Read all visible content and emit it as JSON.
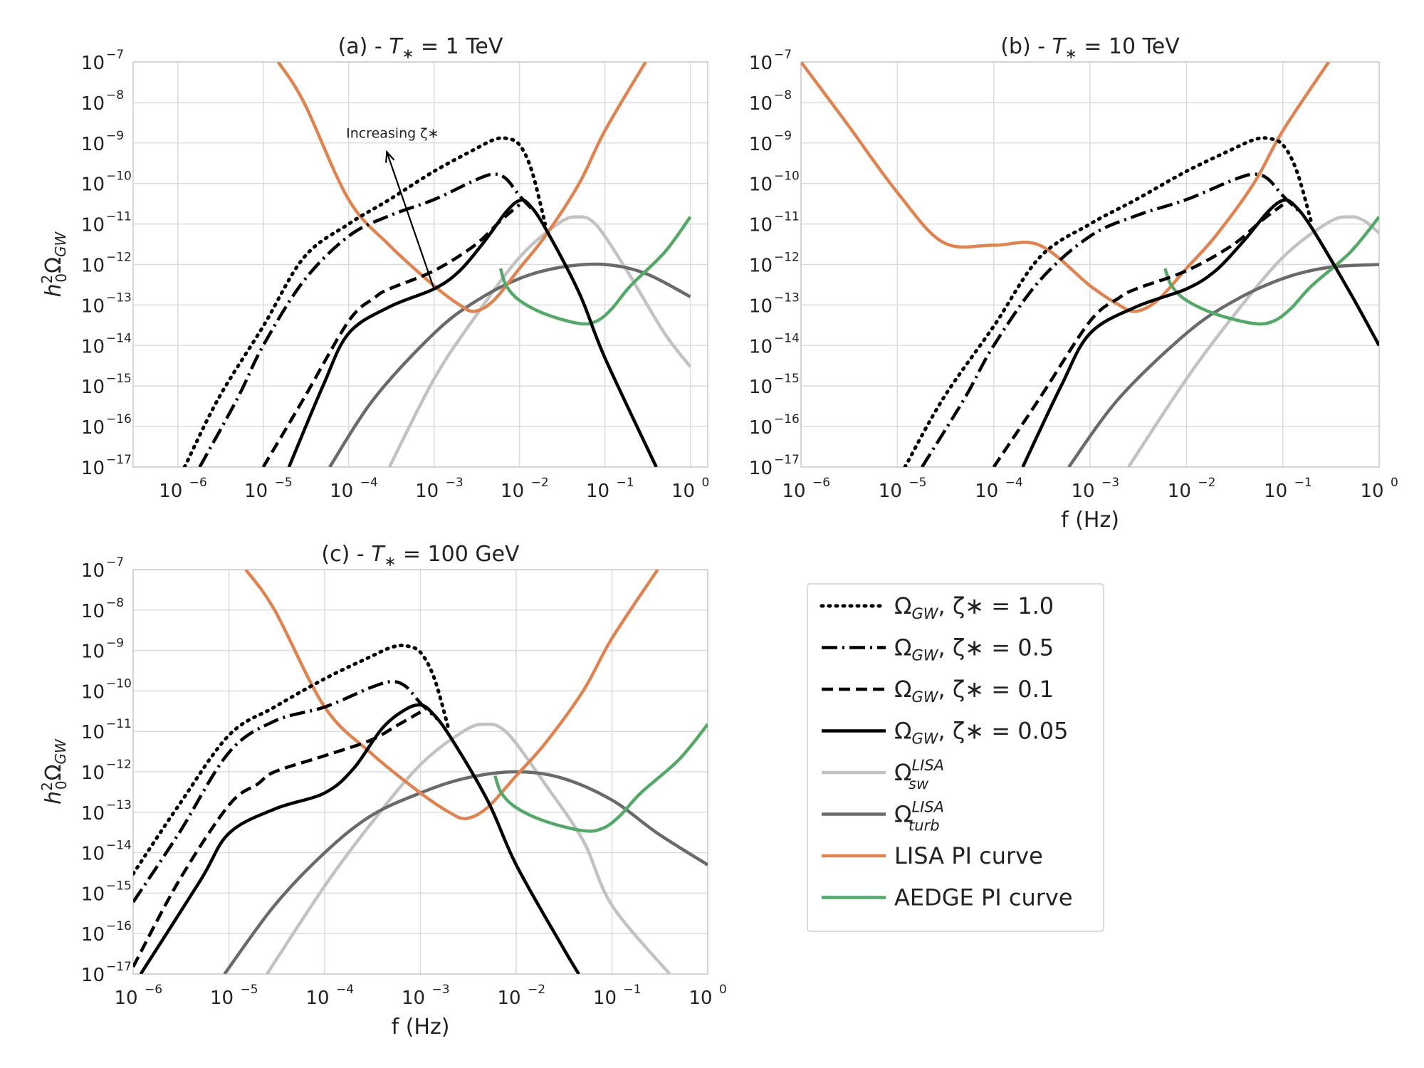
{
  "chart_data": [
    {
      "type": "line",
      "panel": "a",
      "title": "(a) - T∗ = 1 TeV",
      "title_parts": {
        "prefix": "(a) - ",
        "var": "T",
        "sub": "∗",
        "suffix": " = 1 TeV"
      },
      "xlabel": "",
      "ylabel": "h₀²Ω_GW",
      "xscale": "log",
      "yscale": "log",
      "xlim": [
        3e-07,
        1.6
      ],
      "ylim": [
        1e-17,
        1e-07
      ],
      "grid": true,
      "annotation": {
        "text": "Increasing ζ∗",
        "from": [
          0.001,
          2.5e-13
        ],
        "to": [
          0.00028,
          6e-10
        ]
      },
      "series": [
        {
          "name": "Ω_GW, ζ∗=1.0",
          "style": "dotted",
          "x": [
            1.2e-06,
            3e-06,
            1e-05,
            3e-05,
            0.0001,
            0.0003,
            0.001,
            0.003,
            0.005,
            0.007,
            0.01,
            0.014,
            0.02
          ],
          "y": [
            1e-17,
            5e-16,
            3e-14,
            1.5e-12,
            1e-11,
            4e-11,
            2e-10,
            7e-10,
            1.2e-09,
            1.3e-09,
            9e-10,
            2e-10,
            1e-11
          ]
        },
        {
          "name": "Ω_GW, ζ∗=0.5",
          "style": "dashdot",
          "x": [
            1.8e-06,
            5e-06,
            1e-05,
            3e-05,
            0.0001,
            0.0003,
            0.001,
            0.003,
            0.005,
            0.007,
            0.01,
            0.015
          ],
          "y": [
            1e-17,
            5e-16,
            1e-14,
            4e-13,
            5e-12,
            1.6e-11,
            4e-11,
            1.2e-10,
            1.7e-10,
            1.3e-10,
            5e-11,
            2e-11
          ]
        },
        {
          "name": "Ω_GW, ζ∗=0.1",
          "style": "dashed",
          "x": [
            1e-05,
            3e-05,
            0.0001,
            0.0002,
            0.0003,
            0.001,
            0.003,
            0.006,
            0.01
          ],
          "y": [
            1e-17,
            5e-16,
            4e-14,
            1.5e-13,
            2.5e-13,
            7e-13,
            3e-12,
            1.2e-11,
            3e-11
          ]
        },
        {
          "name": "Ω_GW, ζ∗=0.05",
          "style": "solid",
          "x": [
            2e-05,
            5e-05,
            0.0001,
            0.0003,
            0.001,
            0.002,
            0.004,
            0.007,
            0.01,
            0.013,
            0.02,
            0.05,
            0.1,
            0.4
          ],
          "y": [
            1e-17,
            1e-15,
            2e-14,
            9e-14,
            2.5e-13,
            7e-13,
            4e-12,
            2e-11,
            3.8e-11,
            3e-11,
            8e-12,
            2e-13,
            5e-15,
            1e-17
          ]
        },
        {
          "name": "Ω_sw^LISA",
          "style": "lightgray",
          "x": [
            0.0003,
            0.001,
            0.003,
            0.01,
            0.03,
            0.05,
            0.07,
            0.1,
            0.2,
            0.5,
            1.0
          ],
          "y": [
            1e-17,
            1.5e-15,
            5e-14,
            1.5e-12,
            1.1e-11,
            1.5e-11,
            1.2e-11,
            5e-12,
            5e-13,
            2e-14,
            3e-15
          ]
        },
        {
          "name": "Ω_turb^LISA",
          "style": "darkgray",
          "x": [
            6e-05,
            0.0002,
            0.001,
            0.003,
            0.01,
            0.03,
            0.1,
            0.3,
            1.0
          ],
          "y": [
            1e-17,
            5e-16,
            2e-14,
            1.2e-13,
            4.5e-13,
            8.5e-13,
            1e-12,
            6e-13,
            1.6e-13
          ]
        },
        {
          "name": "LISA PI curve",
          "style": "orange",
          "x": [
            1.5e-05,
            3e-05,
            0.0001,
            0.0003,
            0.001,
            0.002,
            0.003,
            0.005,
            0.01,
            0.02,
            0.05,
            0.1,
            0.3
          ],
          "y": [
            1e-07,
            1e-08,
            4e-11,
            3e-12,
            3e-13,
            1e-13,
            7e-14,
            1.3e-13,
            8e-13,
            5e-12,
            1e-10,
            2e-09,
            1e-07
          ]
        },
        {
          "name": "AEDGE PI curve",
          "style": "green",
          "x": [
            0.006,
            0.007,
            0.01,
            0.02,
            0.05,
            0.08,
            0.12,
            0.2,
            0.5,
            1.0
          ],
          "y": [
            8e-13,
            3e-13,
            1.3e-13,
            6e-14,
            3.5e-14,
            4e-14,
            8e-14,
            3e-13,
            2e-12,
            1.5e-11
          ]
        }
      ]
    },
    {
      "type": "line",
      "panel": "b",
      "title": "(b) - T∗ = 10 TeV",
      "title_parts": {
        "prefix": "(b) - ",
        "var": "T",
        "sub": "∗",
        "suffix": " = 10 TeV"
      },
      "xlabel": "f (Hz)",
      "ylabel": "",
      "xscale": "log",
      "yscale": "log",
      "xlim": [
        1e-06,
        1.0
      ],
      "ylim": [
        1e-17,
        1e-07
      ],
      "grid": true,
      "series": [
        {
          "name": "Ω_GW, ζ∗=1.0",
          "style": "dotted",
          "x": [
            1.2e-05,
            3e-05,
            0.0001,
            0.0003,
            0.001,
            0.003,
            0.01,
            0.03,
            0.05,
            0.07,
            0.1,
            0.14,
            0.2
          ],
          "y": [
            1e-17,
            5e-16,
            3e-14,
            1.5e-12,
            1e-11,
            4e-11,
            2e-10,
            7e-10,
            1.2e-09,
            1.3e-09,
            9e-10,
            2e-10,
            1e-11
          ]
        },
        {
          "name": "Ω_GW, ζ∗=0.5",
          "style": "dashdot",
          "x": [
            1.8e-05,
            5e-05,
            0.0001,
            0.0003,
            0.001,
            0.003,
            0.01,
            0.03,
            0.05,
            0.07,
            0.1,
            0.15
          ],
          "y": [
            1e-17,
            5e-16,
            1e-14,
            4e-13,
            5e-12,
            1.6e-11,
            4e-11,
            1.2e-10,
            1.7e-10,
            1.3e-10,
            5e-11,
            2e-11
          ]
        },
        {
          "name": "Ω_GW, ζ∗=0.1",
          "style": "dashed",
          "x": [
            0.0001,
            0.0003,
            0.001,
            0.002,
            0.003,
            0.01,
            0.03,
            0.06,
            0.1
          ],
          "y": [
            1e-17,
            5e-16,
            4e-14,
            1.5e-13,
            2.5e-13,
            7e-13,
            3e-12,
            1.2e-11,
            3e-11
          ]
        },
        {
          "name": "Ω_GW, ζ∗=0.05",
          "style": "solid",
          "x": [
            0.0002,
            0.0005,
            0.001,
            0.003,
            0.01,
            0.02,
            0.04,
            0.07,
            0.1,
            0.13,
            0.2,
            0.5,
            1.0
          ],
          "y": [
            1e-17,
            1e-15,
            2e-14,
            9e-14,
            2.5e-13,
            7e-13,
            4e-12,
            2e-11,
            3.8e-11,
            3e-11,
            8e-12,
            2e-13,
            1e-14
          ]
        },
        {
          "name": "Ω_sw^LISA",
          "style": "lightgray",
          "x": [
            0.0025,
            0.01,
            0.03,
            0.1,
            0.3,
            0.5,
            0.7,
            1.0
          ],
          "y": [
            1e-17,
            1.5e-15,
            5e-14,
            1.5e-12,
            1.1e-11,
            1.5e-11,
            1.2e-11,
            6e-12
          ]
        },
        {
          "name": "Ω_turb^LISA",
          "style": "darkgray",
          "x": [
            0.0006,
            0.002,
            0.01,
            0.03,
            0.1,
            0.3,
            1.0
          ],
          "y": [
            1e-17,
            5e-16,
            2e-14,
            1.2e-13,
            4.5e-13,
            8.5e-13,
            1e-12
          ]
        },
        {
          "name": "LISA PI curve",
          "style": "orange",
          "x": [
            1e-06,
            3e-06,
            1e-05,
            3e-05,
            0.0001,
            0.0003,
            0.001,
            0.002,
            0.003,
            0.005,
            0.01,
            0.02,
            0.05,
            0.1,
            0.3
          ],
          "y": [
            1e-07,
            3e-09,
            6e-11,
            3.5e-12,
            3e-12,
            3e-12,
            3e-13,
            1e-13,
            7e-14,
            1.3e-13,
            8e-13,
            5e-12,
            1e-10,
            2e-09,
            1e-07
          ]
        },
        {
          "name": "AEDGE PI curve",
          "style": "green",
          "x": [
            0.006,
            0.007,
            0.01,
            0.02,
            0.05,
            0.08,
            0.12,
            0.2,
            0.5,
            1.0
          ],
          "y": [
            8e-13,
            3e-13,
            1.3e-13,
            6e-14,
            3.5e-14,
            4e-14,
            8e-14,
            3e-13,
            2e-12,
            1.5e-11
          ]
        }
      ]
    },
    {
      "type": "line",
      "panel": "c",
      "title": "(c) - T∗ = 100 GeV",
      "title_parts": {
        "prefix": "(c) - ",
        "var": "T",
        "sub": "∗",
        "suffix": " = 100 GeV"
      },
      "xlabel": "f (Hz)",
      "ylabel": "h₀²Ω_GW",
      "xscale": "log",
      "yscale": "log",
      "xlim": [
        1e-06,
        1.0
      ],
      "ylim": [
        1e-17,
        1e-07
      ],
      "grid": true,
      "series": [
        {
          "name": "Ω_GW, ζ∗=1.0",
          "style": "dotted",
          "x": [
            1e-06,
            3e-06,
            1e-05,
            3e-05,
            0.0001,
            0.0003,
            0.0005,
            0.0007,
            0.001,
            0.0014,
            0.002
          ],
          "y": [
            3e-15,
            1.5e-13,
            8e-12,
            4e-11,
            2e-10,
            7e-10,
            1.2e-09,
            1.3e-09,
            9e-10,
            2e-10,
            1e-11
          ]
        },
        {
          "name": "Ω_GW, ζ∗=0.5",
          "style": "dashdot",
          "x": [
            1e-06,
            3e-06,
            1e-05,
            3e-05,
            0.0001,
            0.0003,
            0.0005,
            0.0007,
            0.001,
            0.0015
          ],
          "y": [
            6e-16,
            3e-14,
            3e-12,
            1.8e-11,
            4e-11,
            1.2e-10,
            1.7e-10,
            1.3e-10,
            5e-11,
            2e-11
          ]
        },
        {
          "name": "Ω_GW, ζ∗=0.1",
          "style": "dashed",
          "x": [
            1e-06,
            3e-06,
            1e-05,
            2e-05,
            3e-05,
            0.0001,
            0.0003,
            0.0006,
            0.001
          ],
          "y": [
            1.5e-17,
            2e-15,
            1.5e-13,
            5e-13,
            1e-12,
            2.5e-12,
            6e-12,
            1.5e-11,
            3e-11
          ]
        },
        {
          "name": "Ω_GW, ζ∗=0.05",
          "style": "solid",
          "x": [
            1.2e-06,
            5e-06,
            1e-05,
            3e-05,
            0.0001,
            0.0002,
            0.0004,
            0.0007,
            0.001,
            0.0013,
            0.002,
            0.005,
            0.01,
            0.03,
            0.045
          ],
          "y": [
            1e-17,
            2e-15,
            3e-14,
            1.2e-13,
            3e-13,
            1.2e-12,
            1.2e-11,
            3.5e-11,
            4.5e-11,
            3e-11,
            8e-12,
            2e-13,
            5e-15,
            5e-17,
            1e-17
          ]
        },
        {
          "name": "Ω_sw^LISA",
          "style": "lightgray",
          "x": [
            2.5e-05,
            0.0001,
            0.0003,
            0.001,
            0.003,
            0.005,
            0.007,
            0.01,
            0.02,
            0.05,
            0.1,
            0.4
          ],
          "y": [
            1e-17,
            1.5e-15,
            5e-14,
            1.5e-12,
            1.1e-11,
            1.5e-11,
            1.2e-11,
            5e-12,
            5e-13,
            2e-14,
            5e-16,
            1e-17
          ]
        },
        {
          "name": "Ω_turb^LISA",
          "style": "darkgray",
          "x": [
            9e-06,
            3e-05,
            0.0001,
            0.0003,
            0.001,
            0.003,
            0.01,
            0.03,
            0.1,
            0.3,
            1.0
          ],
          "y": [
            1e-17,
            5e-16,
            1e-14,
            8e-14,
            3e-13,
            7e-13,
            1e-12,
            7e-13,
            2e-13,
            3e-14,
            5e-15
          ]
        },
        {
          "name": "LISA PI curve",
          "style": "orange",
          "x": [
            1.5e-05,
            3e-05,
            0.0001,
            0.0003,
            0.001,
            0.002,
            0.003,
            0.005,
            0.01,
            0.02,
            0.05,
            0.1,
            0.3
          ],
          "y": [
            1e-07,
            1e-08,
            4e-11,
            3e-12,
            3e-13,
            1e-13,
            7e-14,
            1.3e-13,
            8e-13,
            5e-12,
            1e-10,
            2e-09,
            1e-07
          ]
        },
        {
          "name": "AEDGE PI curve",
          "style": "green",
          "x": [
            0.006,
            0.007,
            0.01,
            0.02,
            0.05,
            0.08,
            0.12,
            0.2,
            0.5,
            1.0
          ],
          "y": [
            8e-13,
            3e-13,
            1.3e-13,
            6e-14,
            3.5e-14,
            4e-14,
            8e-14,
            3e-13,
            2e-12,
            1.5e-11
          ]
        }
      ]
    }
  ],
  "legend": {
    "placement": "bottom-right",
    "items": [
      {
        "label_main": "Ω",
        "label_sub": "GW",
        "label_rest": ", ζ∗ = 1.0",
        "style": "dotted"
      },
      {
        "label_main": "Ω",
        "label_sub": "GW",
        "label_rest": ", ζ∗ = 0.5",
        "style": "dashdot"
      },
      {
        "label_main": "Ω",
        "label_sub": "GW",
        "label_rest": ", ζ∗ = 0.1",
        "style": "dashed"
      },
      {
        "label_main": "Ω",
        "label_sub": "GW",
        "label_rest": ", ζ∗ = 0.05",
        "style": "solid"
      },
      {
        "label_main": "Ω",
        "label_sub": "sw",
        "label_sup": "LISA",
        "label_rest": "",
        "style": "lightgray"
      },
      {
        "label_main": "Ω",
        "label_sub": "turb",
        "label_sup": "LISA",
        "label_rest": "",
        "style": "darkgray"
      },
      {
        "label_main": "LISA PI curve",
        "label_rest": "",
        "style": "orange"
      },
      {
        "label_main": "AEDGE PI curve",
        "label_rest": "",
        "style": "green"
      }
    ]
  },
  "styles": {
    "dotted": {
      "color": "#000000",
      "dash": "2,8",
      "width": 5,
      "cap": "round"
    },
    "dashdot": {
      "color": "#000000",
      "dash": "22,7,3,7",
      "width": 4.5,
      "cap": "butt"
    },
    "dashed": {
      "color": "#000000",
      "dash": "16,8",
      "width": 4.5,
      "cap": "butt"
    },
    "solid": {
      "color": "#000000",
      "dash": "",
      "width": 4.5,
      "cap": "butt"
    },
    "lightgray": {
      "color": "#c2c2c2",
      "dash": "",
      "width": 4.5,
      "cap": "butt"
    },
    "darkgray": {
      "color": "#6a6a6a",
      "dash": "",
      "width": 4.5,
      "cap": "butt"
    },
    "orange": {
      "color": "#dd8452",
      "dash": "",
      "width": 4.5,
      "cap": "butt"
    },
    "green": {
      "color": "#55a868",
      "dash": "",
      "width": 4.5,
      "cap": "butt"
    }
  },
  "axis_style": {
    "grid_color": "#dcdcdc",
    "frame_color": "#cccccc"
  }
}
